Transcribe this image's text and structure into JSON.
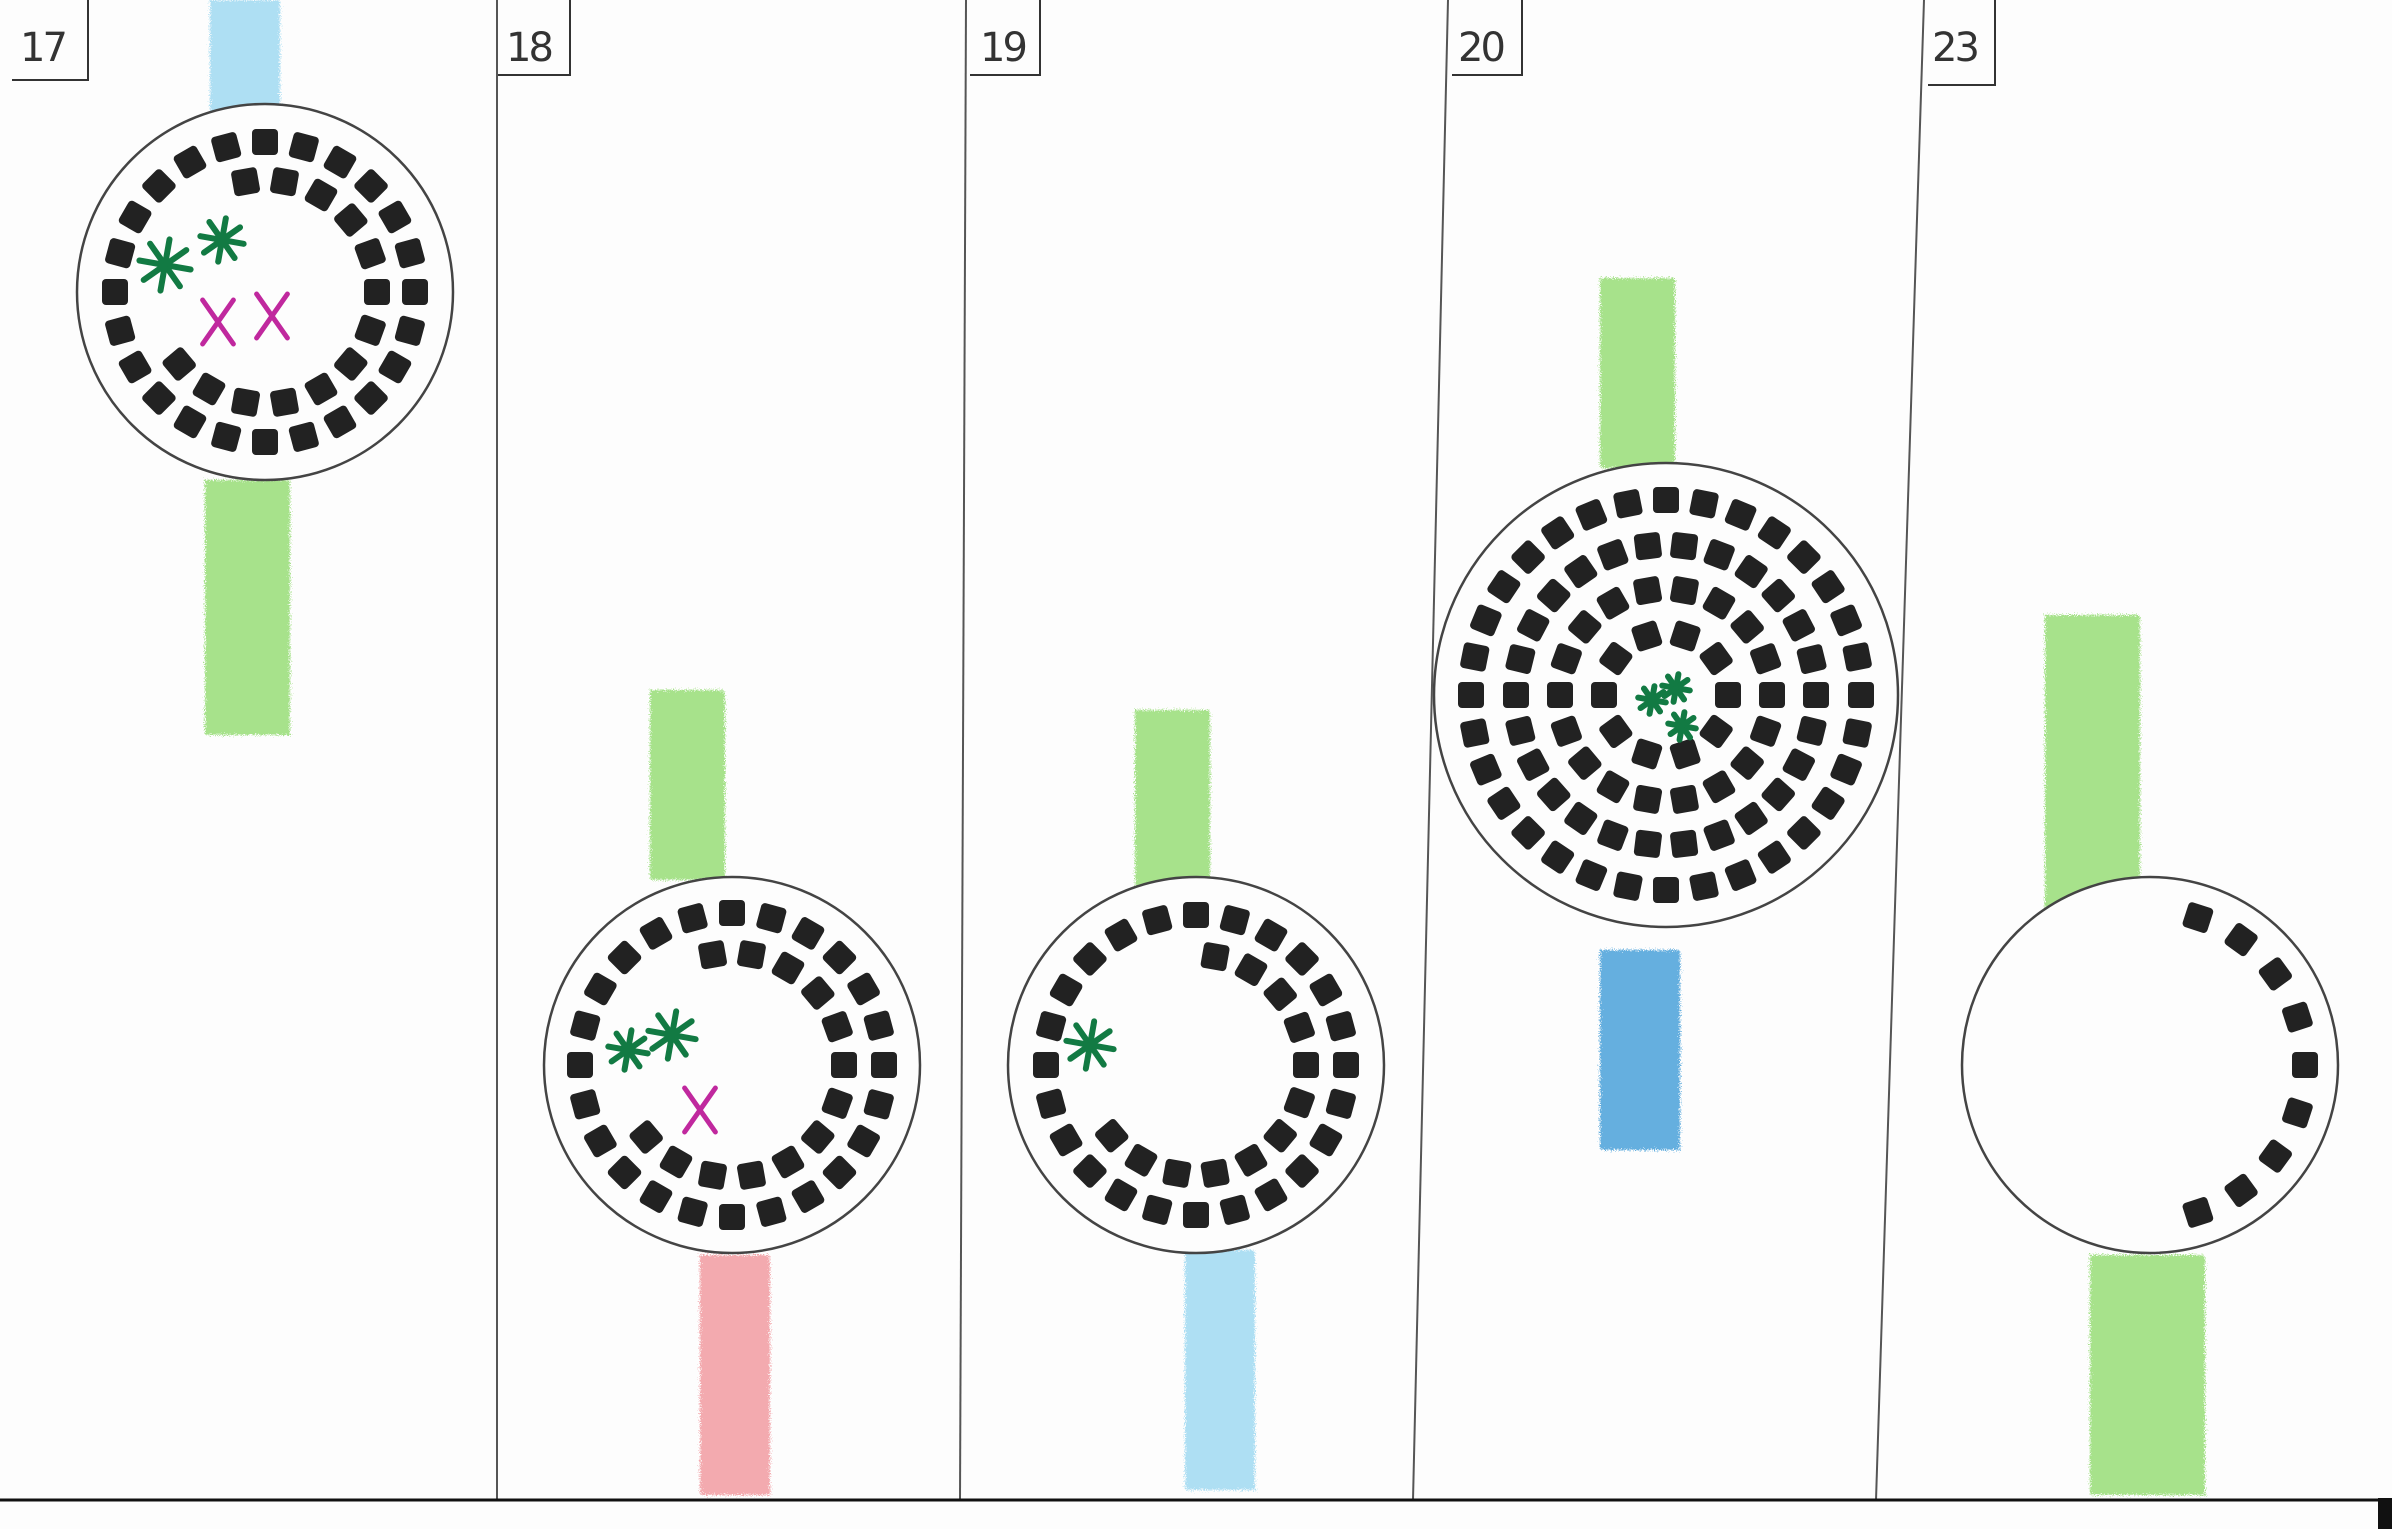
{
  "panels": [
    {
      "label": "17",
      "upper_bar": "light-blue",
      "lower_bar": "green",
      "rings": 2,
      "symbols": [
        "green-asterisk",
        "green-asterisk",
        "magenta-x",
        "magenta-x"
      ]
    },
    {
      "label": "18",
      "upper_bar": "green",
      "lower_bar": "pink",
      "rings": 2,
      "symbols": [
        "green-asterisk",
        "green-asterisk",
        "magenta-x"
      ]
    },
    {
      "label": "19",
      "upper_bar": "green",
      "lower_bar": "light-blue",
      "rings": 2,
      "symbols": [
        "green-asterisk"
      ]
    },
    {
      "label": "20",
      "upper_bar": "green",
      "lower_bar": "blue",
      "rings": 4,
      "symbols": [
        "green-asterisk",
        "green-asterisk",
        "green-asterisk"
      ]
    },
    {
      "label": "23",
      "upper_bar": "green",
      "lower_bar": "green",
      "rings": 1,
      "symbols": []
    }
  ],
  "colors": {
    "green_bar": "#9ee07f",
    "light_blue_bar": "#a6dcf2",
    "blue_bar": "#55a7dc",
    "pink_bar": "#f2a2a7",
    "square": "#222222",
    "asterisk": "#127a43",
    "cross": "#c0289e",
    "line": "#555555"
  }
}
